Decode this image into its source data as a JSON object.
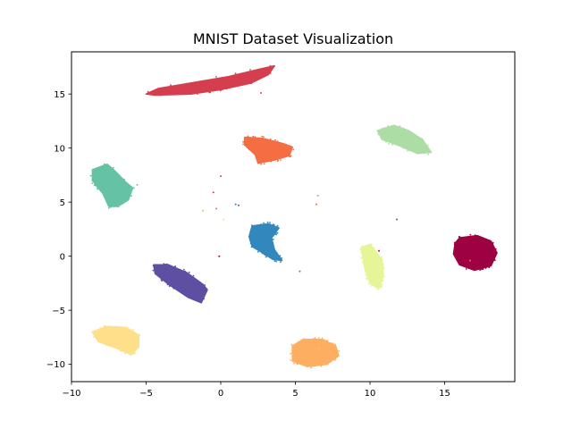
{
  "chart_data": {
    "type": "scatter",
    "title": "MNIST Dataset Visualization",
    "xlabel": "",
    "ylabel": "",
    "xlim": [
      -10,
      19.7
    ],
    "ylim": [
      -11.6,
      18.9
    ],
    "xticks": [
      -10,
      -5,
      0,
      5,
      10,
      15
    ],
    "yticks": [
      -10,
      -5,
      0,
      5,
      10,
      15
    ],
    "xtick_labels": [
      "−10",
      "−5",
      "0",
      "5",
      "10",
      "15"
    ],
    "ytick_labels": [
      "−10",
      "−5",
      "0",
      "5",
      "10",
      "15"
    ],
    "grid": false,
    "legend": "none",
    "clusters": [
      {
        "color": "#9e0142",
        "center": [
          17.0,
          0.3
        ],
        "outline": [
          [
            16.0,
            1.7
          ],
          [
            17.2,
            1.9
          ],
          [
            18.1,
            1.4
          ],
          [
            18.5,
            0.3
          ],
          [
            18.1,
            -0.9
          ],
          [
            17.0,
            -1.3
          ],
          [
            16.0,
            -0.8
          ],
          [
            15.6,
            0.2
          ],
          [
            15.7,
            1.2
          ]
        ]
      },
      {
        "color": "#d53e4f",
        "center": [
          -0.9,
          16.0
        ],
        "outline": [
          [
            -5.0,
            15.0
          ],
          [
            -4.2,
            15.5
          ],
          [
            -2.5,
            15.9
          ],
          [
            0.5,
            16.6
          ],
          [
            2.6,
            17.3
          ],
          [
            3.6,
            17.6
          ],
          [
            3.2,
            16.8
          ],
          [
            2.0,
            16.0
          ],
          [
            0.0,
            15.4
          ],
          [
            -2.0,
            15.0
          ],
          [
            -4.4,
            14.9
          ]
        ]
      },
      {
        "color": "#f46d43",
        "center": [
          3.2,
          9.9
        ],
        "outline": [
          [
            1.6,
            11.0
          ],
          [
            2.8,
            10.9
          ],
          [
            4.2,
            10.4
          ],
          [
            4.8,
            10.1
          ],
          [
            4.6,
            9.3
          ],
          [
            3.6,
            8.9
          ],
          [
            2.5,
            8.6
          ],
          [
            2.3,
            9.4
          ],
          [
            1.6,
            10.3
          ]
        ]
      },
      {
        "color": "#fdae61",
        "center": [
          6.2,
          -9.0
        ],
        "outline": [
          [
            4.8,
            -8.3
          ],
          [
            5.5,
            -7.7
          ],
          [
            6.8,
            -7.7
          ],
          [
            7.7,
            -8.3
          ],
          [
            7.9,
            -9.2
          ],
          [
            7.1,
            -10.0
          ],
          [
            5.8,
            -10.2
          ],
          [
            4.8,
            -9.7
          ]
        ]
      },
      {
        "color": "#fee08b",
        "center": [
          -7.2,
          -7.5
        ],
        "outline": [
          [
            -8.6,
            -7.0
          ],
          [
            -7.6,
            -6.5
          ],
          [
            -6.3,
            -6.6
          ],
          [
            -5.5,
            -7.3
          ],
          [
            -5.5,
            -8.4
          ],
          [
            -6.0,
            -9.1
          ],
          [
            -7.0,
            -8.5
          ],
          [
            -8.2,
            -7.9
          ]
        ]
      },
      {
        "color": "#e6f598",
        "center": [
          10.3,
          -0.7
        ],
        "outline": [
          [
            9.4,
            0.8
          ],
          [
            10.0,
            1.1
          ],
          [
            10.4,
            0.4
          ],
          [
            10.8,
            -0.3
          ],
          [
            10.9,
            -1.8
          ],
          [
            10.6,
            -3.0
          ],
          [
            10.0,
            -2.5
          ],
          [
            9.7,
            -1.4
          ],
          [
            9.5,
            0.0
          ]
        ]
      },
      {
        "color": "#abdda4",
        "center": [
          12.3,
          10.8
        ],
        "outline": [
          [
            10.5,
            11.6
          ],
          [
            11.6,
            12.1
          ],
          [
            12.6,
            11.6
          ],
          [
            13.5,
            10.8
          ],
          [
            14.1,
            9.6
          ],
          [
            13.2,
            9.5
          ],
          [
            12.0,
            10.2
          ],
          [
            10.8,
            10.8
          ]
        ]
      },
      {
        "color": "#66c2a5",
        "center": [
          -7.5,
          6.7
        ],
        "outline": [
          [
            -8.6,
            8.0
          ],
          [
            -7.6,
            8.5
          ],
          [
            -7.1,
            7.9
          ],
          [
            -6.4,
            6.9
          ],
          [
            -5.9,
            6.3
          ],
          [
            -6.2,
            5.2
          ],
          [
            -6.9,
            4.6
          ],
          [
            -7.5,
            4.6
          ],
          [
            -7.9,
            5.8
          ],
          [
            -8.6,
            7.0
          ]
        ]
      },
      {
        "color": "#3288bd",
        "center": [
          2.9,
          1.5
        ],
        "outline": [
          [
            2.1,
            2.8
          ],
          [
            3.2,
            3.0
          ],
          [
            3.9,
            2.6
          ],
          [
            3.4,
            1.7
          ],
          [
            3.6,
            0.6
          ],
          [
            4.1,
            -0.4
          ],
          [
            3.5,
            -0.3
          ],
          [
            2.7,
            0.4
          ],
          [
            2.1,
            0.9
          ],
          [
            1.9,
            1.8
          ]
        ]
      },
      {
        "color": "#5e4fa2",
        "center": [
          -2.8,
          -2.3
        ],
        "outline": [
          [
            -4.5,
            -0.8
          ],
          [
            -3.5,
            -0.8
          ],
          [
            -2.3,
            -1.5
          ],
          [
            -1.2,
            -2.6
          ],
          [
            -0.9,
            -3.1
          ],
          [
            -1.3,
            -4.3
          ],
          [
            -2.2,
            -3.8
          ],
          [
            -3.5,
            -2.6
          ],
          [
            -4.4,
            -1.6
          ]
        ]
      }
    ],
    "outliers": [
      {
        "x": 0.0,
        "y": 7.4,
        "color": "#d53e4f"
      },
      {
        "x": 1.0,
        "y": 4.8,
        "color": "#3288bd"
      },
      {
        "x": 1.2,
        "y": 4.7,
        "color": "#5e4fa2"
      },
      {
        "x": -0.5,
        "y": 5.9,
        "color": "#d53e4f"
      },
      {
        "x": -0.3,
        "y": 4.4,
        "color": "#f46d43"
      },
      {
        "x": -1.2,
        "y": 4.2,
        "color": "#fdae61"
      },
      {
        "x": 6.5,
        "y": 5.6,
        "color": "#66c2a5"
      },
      {
        "x": 6.4,
        "y": 4.8,
        "color": "#f46d43"
      },
      {
        "x": 11.8,
        "y": 3.4,
        "color": "#5e4fa2"
      },
      {
        "x": 0.2,
        "y": 3.4,
        "color": "#fee08b"
      },
      {
        "x": -0.1,
        "y": 0.0,
        "color": "#9e0142"
      },
      {
        "x": 5.3,
        "y": -1.4,
        "color": "#3288bd"
      },
      {
        "x": 2.7,
        "y": 15.1,
        "color": "#d53e4f"
      },
      {
        "x": 6.6,
        "y": -8.5,
        "color": "#abdda4"
      },
      {
        "x": -5.6,
        "y": 6.6,
        "color": "#66c2a5"
      },
      {
        "x": 10.6,
        "y": 0.5,
        "color": "#9e0142"
      },
      {
        "x": 16.7,
        "y": -0.4,
        "color": "#f46d43"
      }
    ]
  }
}
